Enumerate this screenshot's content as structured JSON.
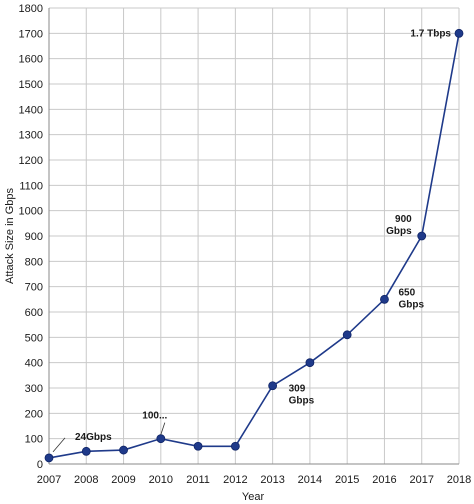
{
  "chart_data": {
    "type": "line",
    "title": "",
    "xlabel": "Year",
    "ylabel": "Attack Size in Gbps",
    "xlim": [
      2007,
      2018
    ],
    "ylim": [
      0,
      1800
    ],
    "yticks": [
      0,
      100,
      200,
      300,
      400,
      500,
      600,
      700,
      800,
      900,
      1000,
      1100,
      1200,
      1300,
      1400,
      1500,
      1600,
      1700,
      1800
    ],
    "x": [
      2007,
      2008,
      2009,
      2010,
      2011,
      2012,
      2013,
      2014,
      2015,
      2016,
      2017,
      2018
    ],
    "series": [
      {
        "values": [
          24,
          50,
          55,
          100,
          70,
          70,
          309,
          400,
          510,
          650,
          900,
          1700
        ]
      }
    ],
    "annotations": [
      {
        "x": 2007,
        "lines": [
          "24Gbps"
        ],
        "leader": true
      },
      {
        "x": 2010,
        "lines": [
          "100..."
        ],
        "leader": true
      },
      {
        "x": 2013,
        "lines": [
          "309",
          "Gbps"
        ]
      },
      {
        "x": 2016,
        "lines": [
          "650",
          "Gbps"
        ]
      },
      {
        "x": 2017,
        "lines": [
          "900",
          "Gbps"
        ]
      },
      {
        "x": 2018,
        "lines": [
          "1.7 Tbps"
        ]
      }
    ],
    "grid": true,
    "legend": "none",
    "colors": {
      "series": "#1f3a8a",
      "grid": "#c9c9c9"
    }
  }
}
